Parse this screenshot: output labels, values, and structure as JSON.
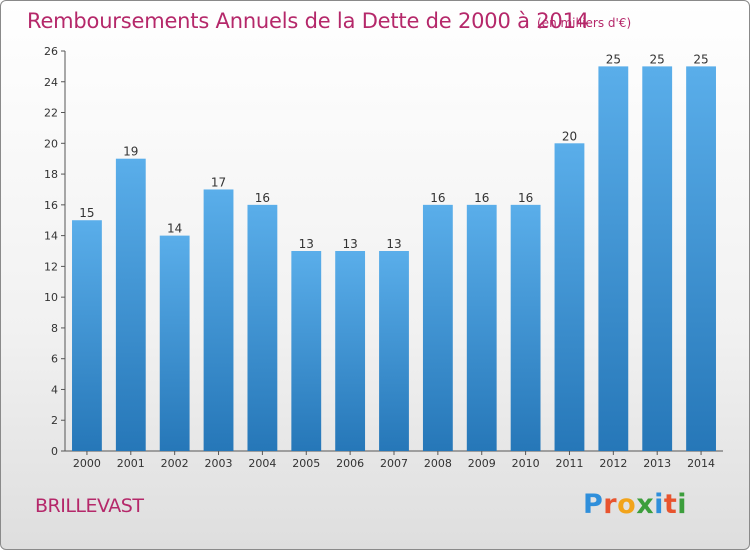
{
  "header": {
    "title": "Remboursements Annuels de la Dette de 2000 à 2014",
    "subtitle": "(en milliers d'€)"
  },
  "footer": {
    "place": "BRILLEVAST",
    "logo_letters": [
      "P",
      "r",
      "o",
      "x",
      "i",
      "t",
      "i"
    ],
    "logo_colors": [
      "#2f8fdb",
      "#e8542f",
      "#f2a41b",
      "#3c9e3c",
      "#2f8fdb",
      "#e8542f",
      "#3c9e3c"
    ]
  },
  "chart_data": {
    "type": "bar",
    "title": "Remboursements Annuels de la Dette de 2000 à 2014",
    "subtitle": "(en milliers d'€)",
    "xlabel": "",
    "ylabel": "",
    "categories": [
      "2000",
      "2001",
      "2002",
      "2003",
      "2004",
      "2005",
      "2006",
      "2007",
      "2008",
      "2009",
      "2010",
      "2011",
      "2012",
      "2013",
      "2014"
    ],
    "values": [
      15,
      19,
      14,
      17,
      16,
      13,
      13,
      13,
      16,
      16,
      16,
      20,
      25,
      25,
      25
    ],
    "data_labels": [
      "15",
      "19",
      "14",
      "17",
      "16",
      "13",
      "13",
      "13",
      "16",
      "16",
      "16",
      "20",
      "25",
      "25",
      "25"
    ],
    "ylim": [
      0,
      26
    ],
    "yticks": [
      0,
      2,
      4,
      6,
      8,
      10,
      12,
      14,
      16,
      18,
      20,
      22,
      24,
      26
    ],
    "ytick_labels": [
      "0",
      "2",
      "4",
      "6",
      "8",
      "10",
      "12",
      "14",
      "16",
      "18",
      "20",
      "22",
      "24",
      "26"
    ],
    "grid": false,
    "legend": "none",
    "bar_color_top": "#5aaeea",
    "bar_color_bottom": "#2677b8"
  }
}
